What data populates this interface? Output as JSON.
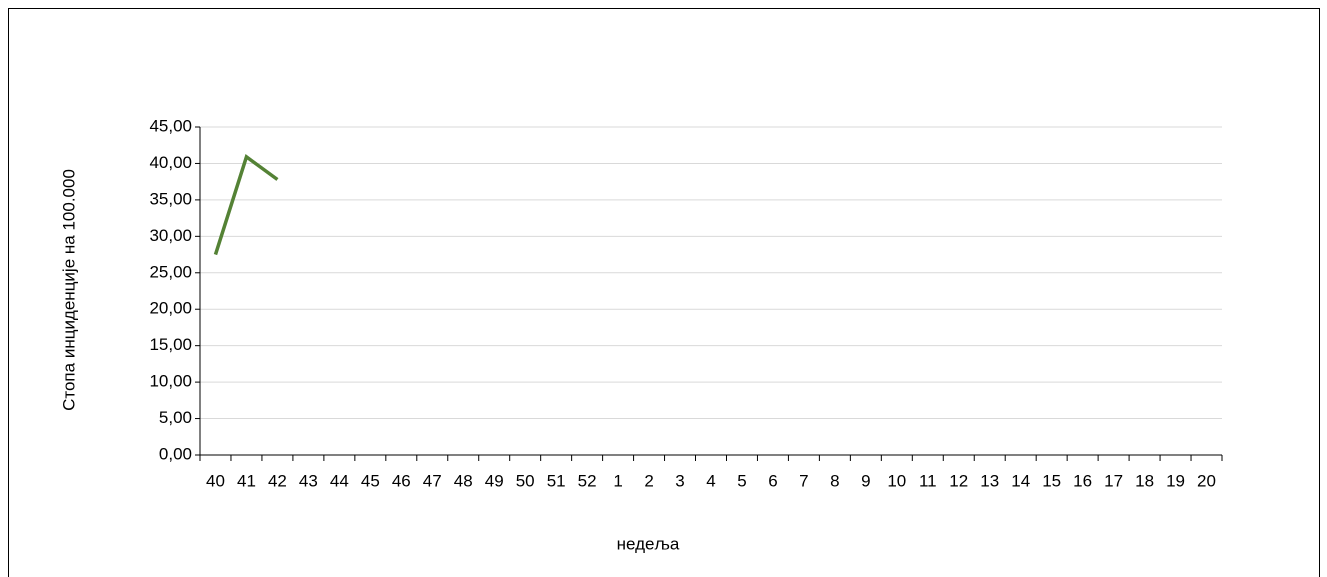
{
  "chart_data": {
    "type": "line",
    "x_label": "недеља",
    "y_label": "Стопа инциденције на 100.000",
    "categories": [
      "40",
      "41",
      "42",
      "43",
      "44",
      "45",
      "46",
      "47",
      "48",
      "49",
      "50",
      "51",
      "52",
      "1",
      "2",
      "3",
      "4",
      "5",
      "6",
      "7",
      "8",
      "9",
      "10",
      "11",
      "12",
      "13",
      "14",
      "15",
      "16",
      "17",
      "18",
      "19",
      "20"
    ],
    "series": [
      {
        "color": "#548235",
        "values": [
          27.5,
          40.9,
          37.8,
          null,
          null,
          null,
          null,
          null,
          null,
          null,
          null,
          null,
          null,
          null,
          null,
          null,
          null,
          null,
          null,
          null,
          null,
          null,
          null,
          null,
          null,
          null,
          null,
          null,
          null,
          null,
          null,
          null,
          null
        ]
      }
    ],
    "ylim": [
      0,
      45
    ],
    "yticks": [
      {
        "value": 0,
        "label": "0,00"
      },
      {
        "value": 5,
        "label": "5,00"
      },
      {
        "value": 10,
        "label": "10,00"
      },
      {
        "value": 15,
        "label": "15,00"
      },
      {
        "value": 20,
        "label": "20,00"
      },
      {
        "value": 25,
        "label": "25,00"
      },
      {
        "value": 30,
        "label": "30,00"
      },
      {
        "value": 35,
        "label": "35,00"
      },
      {
        "value": 40,
        "label": "40,00"
      },
      {
        "value": 45,
        "label": "45,00"
      }
    ],
    "grid": true
  }
}
